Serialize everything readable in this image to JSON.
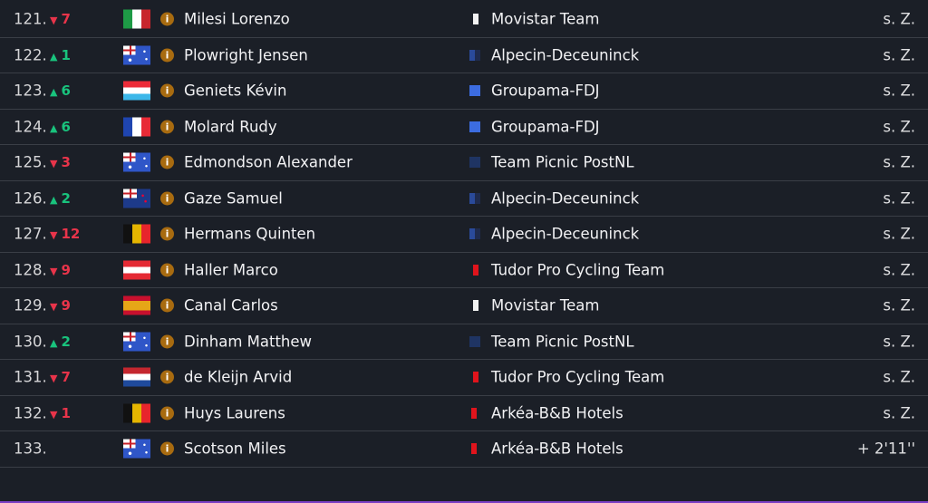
{
  "rows": [
    {
      "rank": "121.",
      "dir": "down",
      "change": "7",
      "flag": "it",
      "flag_icon": "italy-flag-icon",
      "rider": "Milesi Lorenzo",
      "team": "Movistar Team",
      "team_color": "movistar",
      "time": "s. Z."
    },
    {
      "rank": "122.",
      "dir": "up",
      "change": "1",
      "flag": "au",
      "flag_icon": "australia-flag-icon",
      "rider": "Plowright Jensen",
      "team": "Alpecin-Deceuninck",
      "team_color": "alpecin",
      "time": "s. Z."
    },
    {
      "rank": "123.",
      "dir": "up",
      "change": "6",
      "flag": "lu",
      "flag_icon": "luxembourg-flag-icon",
      "rider": "Geniets Kévin",
      "team": "Groupama-FDJ",
      "team_color": "fdj",
      "time": "s. Z."
    },
    {
      "rank": "124.",
      "dir": "up",
      "change": "6",
      "flag": "fr",
      "flag_icon": "france-flag-icon",
      "rider": "Molard Rudy",
      "team": "Groupama-FDJ",
      "team_color": "fdj",
      "time": "s. Z."
    },
    {
      "rank": "125.",
      "dir": "down",
      "change": "3",
      "flag": "au",
      "flag_icon": "australia-flag-icon",
      "rider": "Edmondson Alexander",
      "team": "Team Picnic PostNL",
      "team_color": "picnic",
      "time": "s. Z."
    },
    {
      "rank": "126.",
      "dir": "up",
      "change": "2",
      "flag": "nz",
      "flag_icon": "new-zealand-flag-icon",
      "rider": "Gaze Samuel",
      "team": "Alpecin-Deceuninck",
      "team_color": "alpecin",
      "time": "s. Z."
    },
    {
      "rank": "127.",
      "dir": "down",
      "change": "12",
      "flag": "be",
      "flag_icon": "belgium-flag-icon",
      "rider": "Hermans Quinten",
      "team": "Alpecin-Deceuninck",
      "team_color": "alpecin",
      "time": "s. Z."
    },
    {
      "rank": "128.",
      "dir": "down",
      "change": "9",
      "flag": "at",
      "flag_icon": "austria-flag-icon",
      "rider": "Haller Marco",
      "team": "Tudor Pro Cycling Team",
      "team_color": "tudor",
      "time": "s. Z."
    },
    {
      "rank": "129.",
      "dir": "down",
      "change": "9",
      "flag": "es",
      "flag_icon": "spain-flag-icon",
      "rider": "Canal Carlos",
      "team": "Movistar Team",
      "team_color": "movistar",
      "time": "s. Z."
    },
    {
      "rank": "130.",
      "dir": "up",
      "change": "2",
      "flag": "au",
      "flag_icon": "australia-flag-icon",
      "rider": "Dinham Matthew",
      "team": "Team Picnic PostNL",
      "team_color": "picnic",
      "time": "s. Z."
    },
    {
      "rank": "131.",
      "dir": "down",
      "change": "7",
      "flag": "nl",
      "flag_icon": "netherlands-flag-icon",
      "rider": "de Kleijn Arvid",
      "team": "Tudor Pro Cycling Team",
      "team_color": "tudor",
      "time": "s. Z."
    },
    {
      "rank": "132.",
      "dir": "down",
      "change": "1",
      "flag": "be",
      "flag_icon": "belgium-flag-icon",
      "rider": "Huys Laurens",
      "team": "Arkéa-B&B Hotels",
      "team_color": "arkea",
      "time": "s. Z."
    },
    {
      "rank": "133.",
      "dir": "",
      "change": "",
      "flag": "au",
      "flag_icon": "australia-flag-icon",
      "rider": "Scotson Miles",
      "team": "Arkéa-B&B Hotels",
      "team_color": "arkea",
      "time": "+ 2'11''"
    }
  ],
  "info_glyph": "i",
  "arrows": {
    "up": "▲",
    "down": "▼"
  },
  "colors": {
    "up": "#19c37d",
    "down": "#e8344a",
    "accent": "#7b3fc4",
    "info": "#a86b10"
  }
}
